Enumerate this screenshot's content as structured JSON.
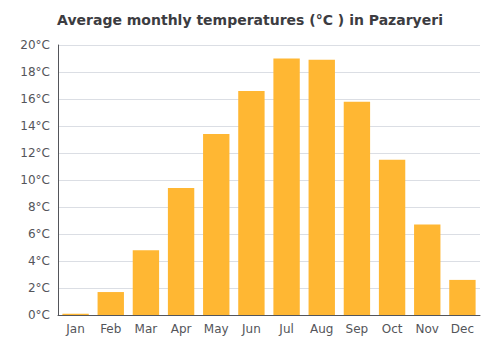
{
  "chart_data": {
    "type": "bar",
    "title": "Average monthly temperatures (°C ) in Pazaryeri",
    "categories": [
      "Jan",
      "Feb",
      "Mar",
      "Apr",
      "May",
      "Jun",
      "Jul",
      "Aug",
      "Sep",
      "Oct",
      "Nov",
      "Dec"
    ],
    "values": [
      0.1,
      1.7,
      4.8,
      9.4,
      13.4,
      16.6,
      19.0,
      18.9,
      15.8,
      11.5,
      6.7,
      2.6
    ],
    "color": "#FFB733",
    "ylim": [
      0,
      20
    ],
    "yticks": [
      {
        "value": 0,
        "label": "0°C"
      },
      {
        "value": 2,
        "label": "2°C"
      },
      {
        "value": 4,
        "label": "4°C"
      },
      {
        "value": 6,
        "label": "6°C"
      },
      {
        "value": 8,
        "label": "8°C"
      },
      {
        "value": 10,
        "label": "10°C"
      },
      {
        "value": 12,
        "label": "12°C"
      },
      {
        "value": 14,
        "label": "14°C"
      },
      {
        "value": 16,
        "label": "16°C"
      },
      {
        "value": 18,
        "label": "18°C"
      },
      {
        "value": 20,
        "label": "20°C"
      }
    ],
    "grid": true
  }
}
